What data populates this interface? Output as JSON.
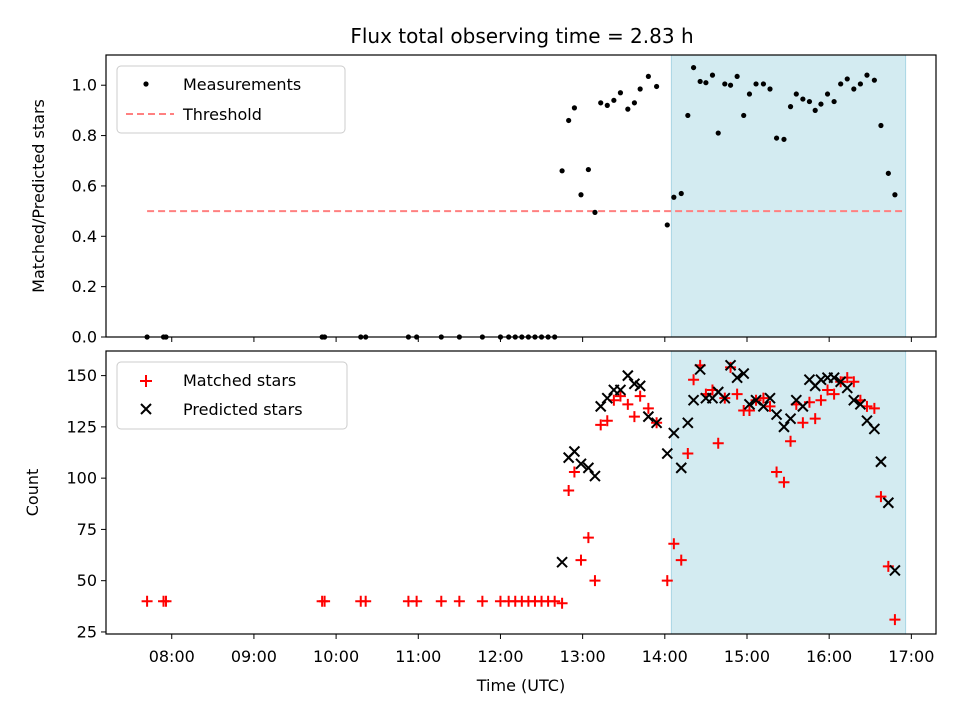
{
  "chart_data": {
    "type": "scatter",
    "title": "Flux total observing time = 2.83 h",
    "xlabel": "Time (UTC)",
    "xlim": [
      7.2,
      17.3
    ],
    "x_ticks": [
      8,
      9,
      10,
      11,
      12,
      13,
      14,
      15,
      16,
      17
    ],
    "x_tick_labels": [
      "08:00",
      "09:00",
      "10:00",
      "11:00",
      "12:00",
      "13:00",
      "14:00",
      "15:00",
      "16:00",
      "17:00"
    ],
    "highlight_span": [
      14.08,
      16.93
    ],
    "colors": {
      "highlight": "#d3ebf1",
      "matched": "#ff0000",
      "predicted": "#000000",
      "threshold": "#ff8080"
    },
    "panels": [
      {
        "ylabel": "Matched/Predicted stars",
        "ylim": [
          0,
          1.12
        ],
        "y_ticks": [
          0.0,
          0.2,
          0.4,
          0.6,
          0.8,
          1.0
        ],
        "y_tick_labels": [
          "0.0",
          "0.2",
          "0.4",
          "0.6",
          "0.8",
          "1.0"
        ],
        "legend": [
          "Measurements",
          "Threshold"
        ],
        "threshold": {
          "name": "Threshold",
          "value": 0.5,
          "x_range": [
            7.7,
            16.93
          ]
        },
        "measurements": {
          "name": "Measurements",
          "points": [
            [
              7.7,
              0
            ],
            [
              7.9,
              0
            ],
            [
              7.93,
              0
            ],
            [
              9.83,
              0
            ],
            [
              9.86,
              0
            ],
            [
              10.3,
              0
            ],
            [
              10.36,
              0
            ],
            [
              10.88,
              0
            ],
            [
              10.98,
              0
            ],
            [
              11.28,
              0
            ],
            [
              11.5,
              0
            ],
            [
              11.78,
              0
            ],
            [
              12.0,
              0
            ],
            [
              12.1,
              0
            ],
            [
              12.18,
              0
            ],
            [
              12.26,
              0
            ],
            [
              12.34,
              0
            ],
            [
              12.42,
              0
            ],
            [
              12.5,
              0
            ],
            [
              12.58,
              0
            ],
            [
              12.66,
              0
            ],
            [
              12.75,
              0.66
            ],
            [
              12.83,
              0.86
            ],
            [
              12.9,
              0.91
            ],
            [
              12.98,
              0.565
            ],
            [
              13.07,
              0.665
            ],
            [
              13.15,
              0.495
            ],
            [
              13.22,
              0.93
            ],
            [
              13.3,
              0.92
            ],
            [
              13.38,
              0.94
            ],
            [
              13.46,
              0.97
            ],
            [
              13.55,
              0.905
            ],
            [
              13.63,
              0.93
            ],
            [
              13.7,
              0.985
            ],
            [
              13.8,
              1.035
            ],
            [
              13.9,
              0.995
            ],
            [
              14.03,
              0.445
            ],
            [
              14.11,
              0.555
            ],
            [
              14.2,
              0.57
            ],
            [
              14.28,
              0.88
            ],
            [
              14.35,
              1.07
            ],
            [
              14.43,
              1.015
            ],
            [
              14.5,
              1.01
            ],
            [
              14.58,
              1.04
            ],
            [
              14.65,
              0.81
            ],
            [
              14.73,
              1.005
            ],
            [
              14.8,
              1.0
            ],
            [
              14.88,
              1.035
            ],
            [
              14.96,
              0.88
            ],
            [
              15.03,
              0.965
            ],
            [
              15.11,
              1.005
            ],
            [
              15.2,
              1.005
            ],
            [
              15.28,
              0.985
            ],
            [
              15.36,
              0.79
            ],
            [
              15.45,
              0.785
            ],
            [
              15.53,
              0.915
            ],
            [
              15.6,
              0.965
            ],
            [
              15.68,
              0.945
            ],
            [
              15.76,
              0.935
            ],
            [
              15.83,
              0.9
            ],
            [
              15.9,
              0.925
            ],
            [
              15.98,
              0.965
            ],
            [
              16.06,
              0.935
            ],
            [
              16.14,
              1.005
            ],
            [
              16.22,
              1.025
            ],
            [
              16.3,
              0.985
            ],
            [
              16.38,
              1.005
            ],
            [
              16.46,
              1.04
            ],
            [
              16.55,
              1.02
            ],
            [
              16.63,
              0.84
            ],
            [
              16.72,
              0.65
            ],
            [
              16.8,
              0.565
            ]
          ]
        }
      },
      {
        "ylabel": "Count",
        "ylim": [
          24,
          162
        ],
        "y_ticks": [
          25,
          50,
          75,
          100,
          125,
          150
        ],
        "y_tick_labels": [
          "25",
          "50",
          "75",
          "100",
          "125",
          "150"
        ],
        "legend": [
          "Matched stars",
          "Predicted stars"
        ],
        "series": [
          {
            "name": "Matched stars",
            "marker": "plus",
            "points": [
              [
                7.7,
                40
              ],
              [
                7.9,
                40
              ],
              [
                7.93,
                40
              ],
              [
                9.83,
                40
              ],
              [
                9.86,
                40
              ],
              [
                10.3,
                40
              ],
              [
                10.36,
                40
              ],
              [
                10.88,
                40
              ],
              [
                10.98,
                40
              ],
              [
                11.28,
                40
              ],
              [
                11.5,
                40
              ],
              [
                11.78,
                40
              ],
              [
                12.0,
                40
              ],
              [
                12.1,
                40
              ],
              [
                12.18,
                40
              ],
              [
                12.26,
                40
              ],
              [
                12.34,
                40
              ],
              [
                12.42,
                40
              ],
              [
                12.5,
                40
              ],
              [
                12.58,
                40
              ],
              [
                12.66,
                40
              ],
              [
                12.75,
                39
              ],
              [
                12.83,
                94
              ],
              [
                12.9,
                103
              ],
              [
                12.98,
                60
              ],
              [
                13.07,
                71
              ],
              [
                13.15,
                50
              ],
              [
                13.22,
                126
              ],
              [
                13.3,
                128
              ],
              [
                13.38,
                138
              ],
              [
                13.46,
                140
              ],
              [
                13.55,
                136
              ],
              [
                13.63,
                130
              ],
              [
                13.7,
                140
              ],
              [
                13.8,
                134
              ],
              [
                13.9,
                127
              ],
              [
                14.03,
                50
              ],
              [
                14.11,
                68
              ],
              [
                14.2,
                60
              ],
              [
                14.28,
                112
              ],
              [
                14.35,
                148
              ],
              [
                14.43,
                155
              ],
              [
                14.5,
                141
              ],
              [
                14.58,
                143
              ],
              [
                14.65,
                117
              ],
              [
                14.73,
                139
              ],
              [
                14.8,
                154
              ],
              [
                14.88,
                141
              ],
              [
                14.96,
                133
              ],
              [
                15.03,
                133
              ],
              [
                15.11,
                138
              ],
              [
                15.2,
                139
              ],
              [
                15.28,
                135
              ],
              [
                15.36,
                103
              ],
              [
                15.45,
                98
              ],
              [
                15.53,
                118
              ],
              [
                15.6,
                136
              ],
              [
                15.68,
                127
              ],
              [
                15.76,
                137
              ],
              [
                15.83,
                129
              ],
              [
                15.9,
                138
              ],
              [
                15.98,
                143
              ],
              [
                16.06,
                141
              ],
              [
                16.14,
                147
              ],
              [
                16.22,
                149
              ],
              [
                16.3,
                147
              ],
              [
                16.38,
                138
              ],
              [
                16.46,
                135
              ],
              [
                16.55,
                134
              ],
              [
                16.63,
                91
              ],
              [
                16.72,
                57
              ],
              [
                16.8,
                31
              ]
            ]
          },
          {
            "name": "Predicted stars",
            "marker": "x",
            "points": [
              [
                12.75,
                59
              ],
              [
                12.83,
                110
              ],
              [
                12.9,
                113
              ],
              [
                12.98,
                107
              ],
              [
                13.07,
                105
              ],
              [
                13.15,
                101
              ],
              [
                13.22,
                135
              ],
              [
                13.3,
                139
              ],
              [
                13.38,
                143
              ],
              [
                13.46,
                143
              ],
              [
                13.55,
                150
              ],
              [
                13.63,
                146
              ],
              [
                13.7,
                145
              ],
              [
                13.8,
                130
              ],
              [
                13.9,
                127
              ],
              [
                14.03,
                112
              ],
              [
                14.11,
                122
              ],
              [
                14.2,
                105
              ],
              [
                14.28,
                127
              ],
              [
                14.35,
                138
              ],
              [
                14.43,
                153
              ],
              [
                14.5,
                139
              ],
              [
                14.58,
                139
              ],
              [
                14.65,
                142
              ],
              [
                14.73,
                139
              ],
              [
                14.8,
                155
              ],
              [
                14.88,
                149
              ],
              [
                14.96,
                151
              ],
              [
                15.03,
                136
              ],
              [
                15.11,
                138
              ],
              [
                15.2,
                135
              ],
              [
                15.28,
                139
              ],
              [
                15.36,
                131
              ],
              [
                15.45,
                125
              ],
              [
                15.53,
                129
              ],
              [
                15.6,
                138
              ],
              [
                15.68,
                135
              ],
              [
                15.76,
                148
              ],
              [
                15.83,
                145
              ],
              [
                15.9,
                148
              ],
              [
                15.98,
                149
              ],
              [
                16.06,
                149
              ],
              [
                16.14,
                147
              ],
              [
                16.22,
                144
              ],
              [
                16.3,
                138
              ],
              [
                16.38,
                136
              ],
              [
                16.46,
                128
              ],
              [
                16.55,
                124
              ],
              [
                16.63,
                108
              ],
              [
                16.72,
                88
              ],
              [
                16.8,
                55
              ]
            ]
          }
        ]
      }
    ]
  }
}
